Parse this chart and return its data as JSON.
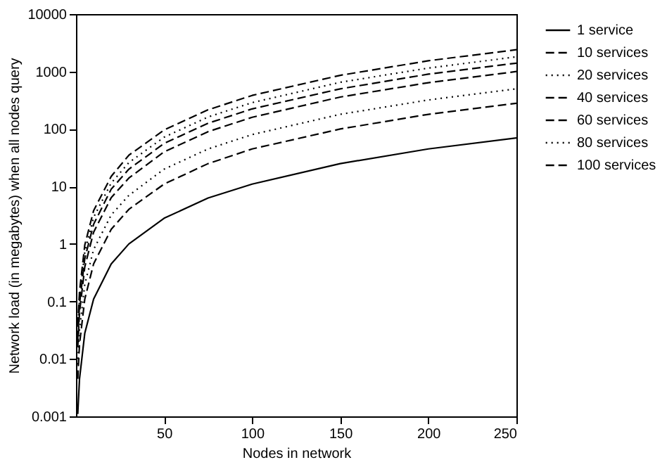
{
  "chart_data": {
    "type": "line",
    "xlabel": "Nodes in network",
    "ylabel": "Network load (in megabytes) when all nodes query",
    "x": [
      1,
      2,
      5,
      10,
      20,
      30,
      50,
      75,
      100,
      150,
      200,
      250
    ],
    "series": [
      {
        "name": "1 service",
        "color": "#000000",
        "line_style": "solid",
        "values": [
          0.0011,
          0.0045,
          0.028,
          0.11,
          0.45,
          1,
          2.8,
          6.3,
          11,
          25,
          45,
          70
        ]
      },
      {
        "name": "10 services",
        "color": "#000000",
        "line_style": "dashed",
        "values": [
          0.0045,
          0.018,
          0.11,
          0.45,
          1.8,
          4,
          11,
          25,
          45,
          100,
          180,
          280
        ]
      },
      {
        "name": "20 services",
        "color": "#000000",
        "line_style": "dotted",
        "values": [
          0.008,
          0.032,
          0.2,
          0.8,
          3.2,
          7,
          20,
          45,
          80,
          180,
          320,
          500
        ]
      },
      {
        "name": "40 services",
        "color": "#000000",
        "line_style": "dashed",
        "values": [
          0.016,
          0.064,
          0.4,
          1.6,
          6.4,
          14,
          40,
          90,
          160,
          360,
          640,
          1000
        ]
      },
      {
        "name": "60 services",
        "color": "#000000",
        "line_style": "dashed",
        "values": [
          0.022,
          0.09,
          0.56,
          2.2,
          9,
          20,
          56,
          126,
          224,
          500,
          900,
          1400
        ]
      },
      {
        "name": "80 services",
        "color": "#000000",
        "line_style": "dotted",
        "values": [
          0.029,
          0.115,
          0.72,
          2.9,
          11.5,
          26,
          72,
          162,
          288,
          650,
          1150,
          1800
        ]
      },
      {
        "name": "100 services",
        "color": "#000000",
        "line_style": "dashed",
        "values": [
          0.038,
          0.15,
          0.96,
          3.8,
          15,
          35,
          96,
          216,
          384,
          860,
          1540,
          2400
        ]
      }
    ],
    "xlim": [
      0,
      250
    ],
    "xticks": [
      50,
      100,
      150,
      200,
      250
    ],
    "ylim": [
      0.001,
      10000
    ],
    "yticks": [
      0.001,
      0.01,
      0.1,
      1,
      10,
      100,
      1000,
      10000
    ],
    "log": "y",
    "grid": false,
    "legend": "right",
    "marker": "none"
  }
}
